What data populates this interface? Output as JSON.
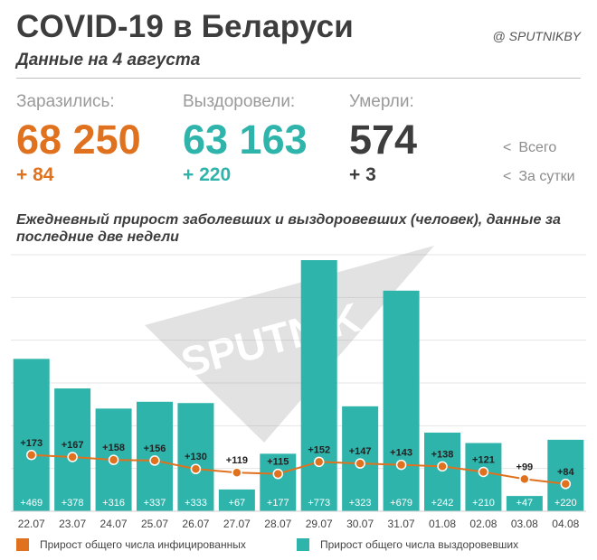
{
  "header": {
    "title": "COVID-19 в Беларуси",
    "subtitle": "Данные на 4 августа",
    "brand": "@ SPUTNIKBY"
  },
  "stats": [
    {
      "label": "Заразились:",
      "total": "68 250",
      "daily": "+ 84"
    },
    {
      "label": "Выздоровели:",
      "total": "63 163",
      "daily": "+ 220"
    },
    {
      "label": "Умерли:",
      "total": "574",
      "daily": "+ 3"
    }
  ],
  "key": {
    "total_label": "Всего",
    "daily_label": "За сутки",
    "arrow": "<"
  },
  "colors": {
    "infected": "#e0711e",
    "recovered": "#2fb4ac",
    "dark": "#3d3d3d"
  },
  "watermark": "SPUTNIK",
  "chart_data": {
    "type": "bar",
    "title": "Ежедневный прирост заболевших и выздоровевших (человек), данные за последние две недели",
    "categories": [
      "22.07",
      "23.07",
      "24.07",
      "25.07",
      "26.07",
      "27.07",
      "28.07",
      "29.07",
      "30.07",
      "31.07",
      "01.08",
      "02.08",
      "03.08",
      "04.08"
    ],
    "series": [
      {
        "name": "Прирост общего числа выздоровевших",
        "kind": "bar",
        "color": "#2fb4ac",
        "values": [
          469,
          378,
          316,
          337,
          333,
          67,
          177,
          773,
          323,
          679,
          242,
          210,
          47,
          220
        ]
      },
      {
        "name": "Прирост общего числа инфицированных",
        "kind": "line",
        "color": "#e0711e",
        "values": [
          173,
          167,
          158,
          156,
          130,
          119,
          115,
          152,
          147,
          143,
          138,
          121,
          99,
          84
        ]
      }
    ],
    "grid": true,
    "legend_position": "bottom"
  }
}
